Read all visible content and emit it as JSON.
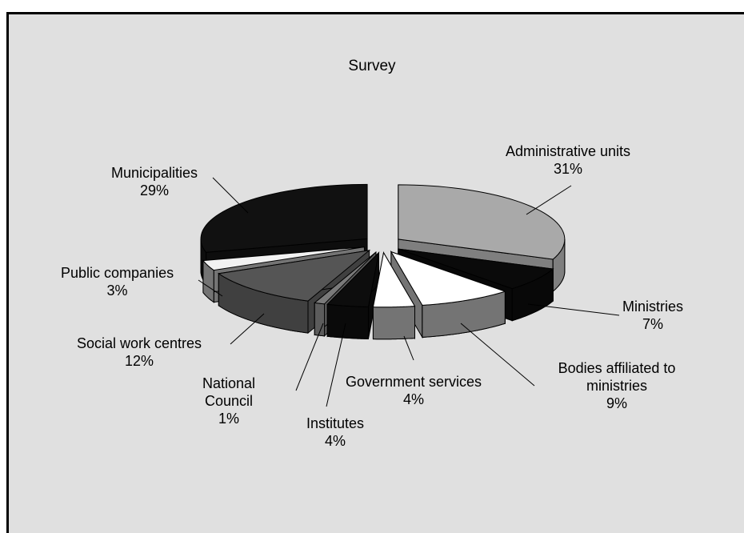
{
  "chart_data": {
    "type": "pie",
    "title": "Survey",
    "slices": [
      {
        "name": "Administrative units",
        "value": 31,
        "label": "31%",
        "color": "#a9a9a9"
      },
      {
        "name": "Ministries",
        "value": 7,
        "label": "7%",
        "color": "#0a0a0a"
      },
      {
        "name": "Bodies affiliated to ministries",
        "value": 9,
        "label": "9%",
        "color": "#ffffff"
      },
      {
        "name": "Government services",
        "value": 4,
        "label": "4%",
        "color": "#ffffff"
      },
      {
        "name": "Institutes",
        "value": 4,
        "label": "4%",
        "color": "#0d0d0d"
      },
      {
        "name": "National Council",
        "value": 1,
        "label": "1%",
        "color": "#7a7a7a"
      },
      {
        "name": "Social work centres",
        "value": 12,
        "label": "12%",
        "color": "#555555"
      },
      {
        "name": "Public companies",
        "value": 3,
        "label": "3%",
        "color": "#f2f2f2"
      },
      {
        "name": "Municipalities",
        "value": 29,
        "label": "29%",
        "color": "#111111"
      }
    ],
    "legend": "none",
    "style": "3d-exploded"
  }
}
